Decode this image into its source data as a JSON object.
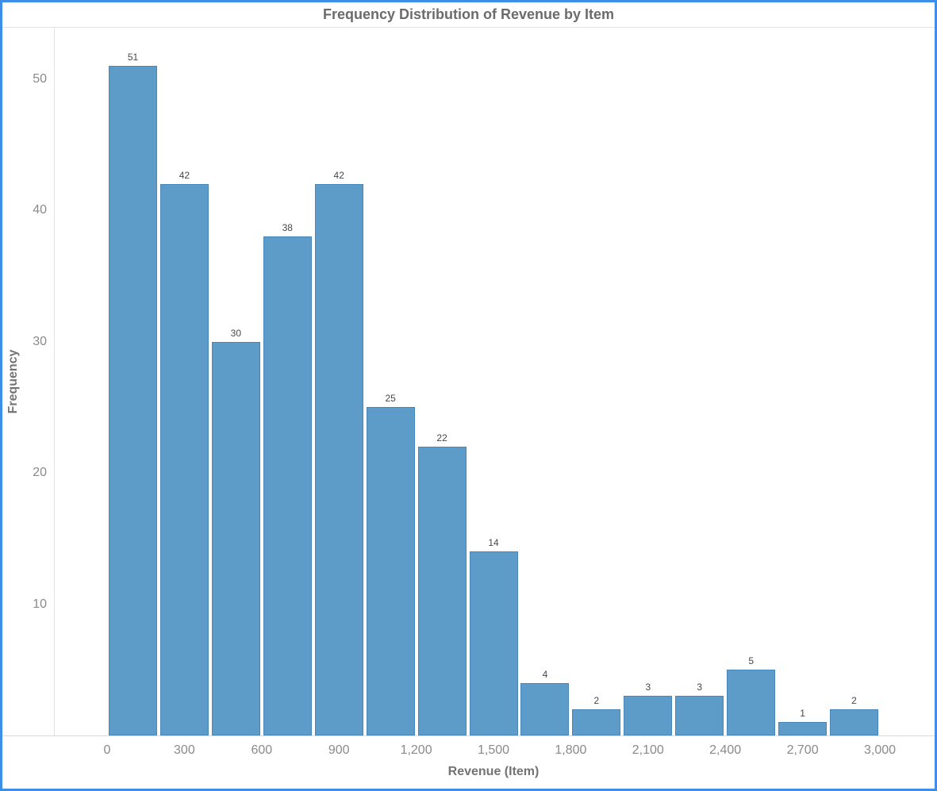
{
  "page": {
    "title": "Frequency Distribution of Revenue by Item"
  },
  "chart_data": {
    "type": "bar",
    "subtype": "histogram",
    "title": "Frequency Distribution of Revenue by Item",
    "xlabel": "Revenue (Item)",
    "ylabel": "Frequency",
    "bin_edges": [
      0,
      200,
      400,
      600,
      800,
      1000,
      1200,
      1400,
      1600,
      1800,
      2000,
      2200,
      2400,
      2600,
      2800,
      3000
    ],
    "values": [
      51,
      42,
      30,
      38,
      42,
      25,
      22,
      14,
      4,
      2,
      3,
      3,
      5,
      1,
      2
    ],
    "bar_labels": [
      "51",
      "42",
      "30",
      "38",
      "42",
      "25",
      "22",
      "14",
      "4",
      "2",
      "3",
      "3",
      "5",
      "1",
      "2"
    ],
    "x_tick_values": [
      0,
      300,
      600,
      900,
      1200,
      1500,
      1800,
      2100,
      2400,
      2700,
      3000
    ],
    "x_tick_labels": [
      "0",
      "300",
      "600",
      "900",
      "1,200",
      "1,500",
      "1,800",
      "2,100",
      "2,400",
      "2,700",
      "3,000"
    ],
    "y_tick_values": [
      10,
      20,
      30,
      40,
      50
    ],
    "y_tick_labels": [
      "10",
      "20",
      "30",
      "40",
      "50"
    ],
    "xlim": [
      -206,
      3210
    ],
    "ylim": [
      0,
      54
    ],
    "grid": false,
    "legend": false,
    "colors": {
      "bar_fill": "#5D9CC9",
      "bar_stroke": "#4787BA",
      "frame_border": "#3D8EE9",
      "title_text": "#6B6B6B",
      "tick_text": "#8A8A8A",
      "axis_title_text": "#737373",
      "bar_label_text": "#474747",
      "separator": "#E3E3E3",
      "axis_line": "#D9D9D9",
      "background": "#FFFFFF"
    }
  }
}
